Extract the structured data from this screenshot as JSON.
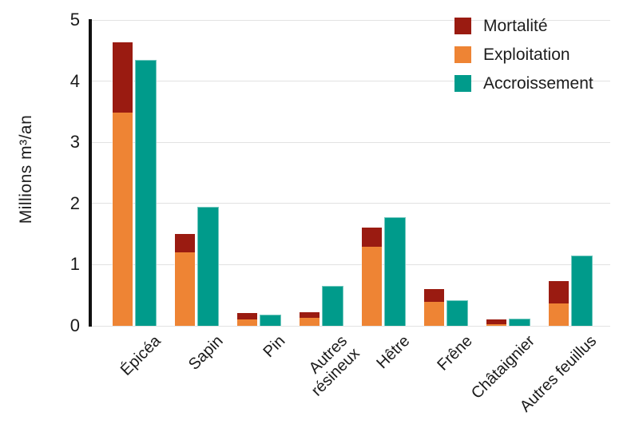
{
  "chart_data": {
    "type": "bar",
    "title": "",
    "ylabel": "Millions m³/an",
    "xlabel": "",
    "ylim": [
      0,
      5
    ],
    "yticks": [
      0,
      1,
      2,
      3,
      4,
      5
    ],
    "grid": true,
    "legend_position": "top-right",
    "categories": [
      "Épicéa",
      "Sapin",
      "Pin",
      "Autres\nrésineux",
      "Hêtre",
      "Frêne",
      "Châtaignier",
      "Autres feuillus"
    ],
    "series": [
      {
        "name": "Mortalité",
        "color": "#9a1b11",
        "stack": "prelevement",
        "values": [
          1.15,
          0.3,
          0.11,
          0.1,
          0.32,
          0.22,
          0.09,
          0.37
        ]
      },
      {
        "name": "Exploitation",
        "color": "#ee8434",
        "stack": "prelevement",
        "values": [
          3.5,
          1.22,
          0.11,
          0.14,
          1.3,
          0.4,
          0.03,
          0.38
        ]
      },
      {
        "name": "Accroissement",
        "color": "#009b8b",
        "stack": null,
        "values": [
          4.35,
          1.95,
          0.18,
          0.65,
          1.78,
          0.42,
          0.12,
          1.15
        ]
      }
    ]
  },
  "colors": {
    "axis_line": "#111111",
    "grid_line": "#e2e2e2",
    "text": "#1a1a1a"
  }
}
